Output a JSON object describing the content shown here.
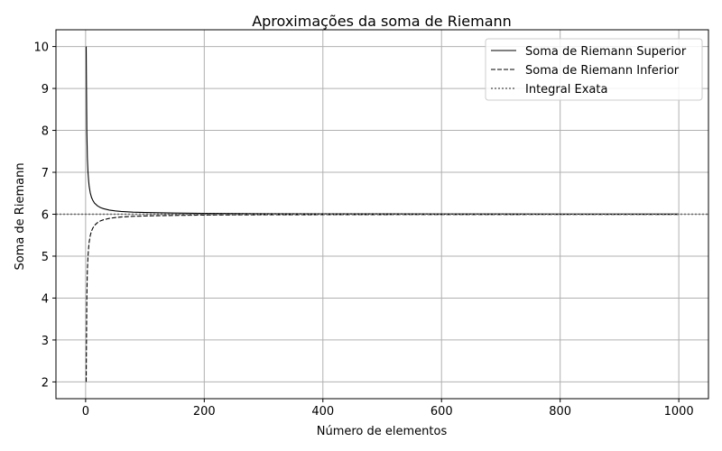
{
  "chart_data": {
    "type": "line",
    "title": "Aproximações da soma de Riemann",
    "xlabel": "Número de elementos",
    "ylabel": "Soma de Riemann",
    "xlim": [
      -50,
      1050
    ],
    "ylim": [
      1.6,
      10.4
    ],
    "xticks": [
      0,
      200,
      400,
      600,
      800,
      1000
    ],
    "yticks": [
      2,
      3,
      4,
      5,
      6,
      7,
      8,
      9,
      10
    ],
    "grid": true,
    "legend_position": "top-right",
    "series": [
      {
        "name": "Soma de Riemann Superior",
        "style": "solid",
        "color": "#000000",
        "x": [
          1,
          2,
          3,
          4,
          5,
          6,
          8,
          10,
          12,
          15,
          20,
          25,
          30,
          40,
          50,
          60,
          80,
          100,
          150,
          200,
          300,
          400,
          500,
          600,
          700,
          800,
          900,
          1000
        ],
        "y": [
          10,
          8,
          7.333,
          7,
          6.8,
          6.667,
          6.5,
          6.4,
          6.333,
          6.267,
          6.2,
          6.16,
          6.133,
          6.1,
          6.08,
          6.067,
          6.05,
          6.04,
          6.027,
          6.02,
          6.013,
          6.01,
          6.008,
          6.007,
          6.006,
          6.005,
          6.004,
          6.004
        ]
      },
      {
        "name": "Soma de Riemann Inferior",
        "style": "dashed",
        "color": "#000000",
        "x": [
          1,
          2,
          3,
          4,
          5,
          6,
          8,
          10,
          12,
          15,
          20,
          25,
          30,
          40,
          50,
          60,
          80,
          100,
          150,
          200,
          300,
          400,
          500,
          600,
          700,
          800,
          900,
          1000
        ],
        "y": [
          2,
          4,
          4.667,
          5,
          5.2,
          5.333,
          5.5,
          5.6,
          5.667,
          5.733,
          5.8,
          5.84,
          5.867,
          5.9,
          5.92,
          5.933,
          5.95,
          5.96,
          5.973,
          5.98,
          5.987,
          5.99,
          5.992,
          5.993,
          5.994,
          5.995,
          5.996,
          5.996
        ]
      },
      {
        "name": "Integral Exata",
        "style": "dotted",
        "color": "#666666",
        "x": [
          -50,
          1050
        ],
        "y": [
          6,
          6
        ]
      }
    ]
  }
}
